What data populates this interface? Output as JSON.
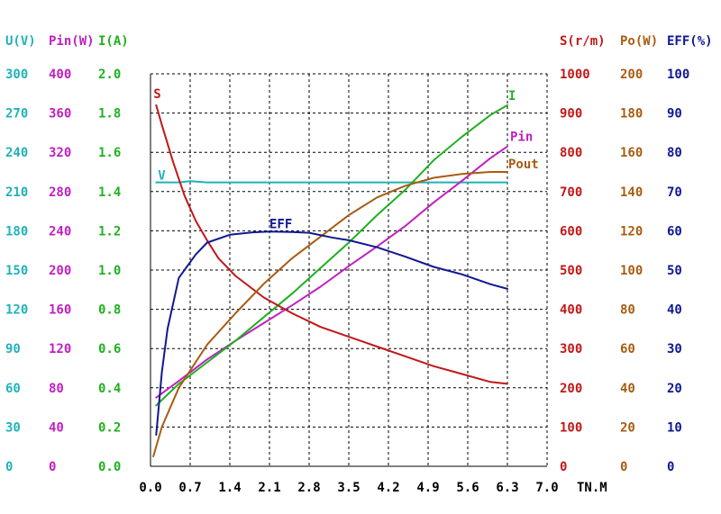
{
  "colors": {
    "U": "#20b2b8",
    "Pin": "#c020c0",
    "I": "#20b020",
    "S": "#c01818",
    "Po": "#a85c10",
    "EFF": "#101890",
    "grid": "#000000",
    "xaxis": "#000000"
  },
  "chart_data": {
    "type": "line",
    "x_unit": "TN.M",
    "x_ticks": [
      "0.0",
      "0.7",
      "1.4",
      "2.1",
      "2.8",
      "3.5",
      "4.2",
      "4.9",
      "5.6",
      "6.3",
      "7.0"
    ],
    "xlim": [
      0,
      7.0
    ],
    "grid": true,
    "axes": [
      {
        "key": "U",
        "header": "U(V)",
        "side": "left",
        "ticks": [
          "0",
          "30",
          "60",
          "90",
          "120",
          "150",
          "180",
          "210",
          "240",
          "270",
          "300"
        ],
        "ylim": [
          0,
          300
        ]
      },
      {
        "key": "Pin",
        "header": "Pin(W)",
        "side": "left",
        "ticks": [
          "0",
          "40",
          "80",
          "120",
          "160",
          "200",
          "240",
          "280",
          "320",
          "360",
          "400"
        ],
        "ylim": [
          0,
          400
        ]
      },
      {
        "key": "I",
        "header": "I(A)",
        "side": "left",
        "ticks": [
          "0.0",
          "0.2",
          "0.4",
          "0.6",
          "0.8",
          "1.0",
          "1.2",
          "1.4",
          "1.6",
          "1.8",
          "2.0"
        ],
        "ylim": [
          0,
          2.0
        ]
      },
      {
        "key": "S",
        "header": "S(r/m)",
        "side": "right",
        "ticks": [
          "0",
          "100",
          "200",
          "300",
          "400",
          "500",
          "600",
          "700",
          "800",
          "900",
          "1000"
        ],
        "ylim": [
          0,
          1000
        ]
      },
      {
        "key": "Po",
        "header": "Po(W)",
        "side": "right",
        "ticks": [
          "0",
          "20",
          "40",
          "60",
          "80",
          "100",
          "120",
          "140",
          "160",
          "180",
          "200"
        ],
        "ylim": [
          0,
          200
        ]
      },
      {
        "key": "EFF",
        "header": "EFF(%)",
        "side": "right",
        "ticks": [
          "0",
          "10",
          "20",
          "30",
          "40",
          "50",
          "60",
          "70",
          "80",
          "90",
          "100"
        ],
        "ylim": [
          0,
          100
        ]
      }
    ],
    "series": [
      {
        "name": "V",
        "axis": "U",
        "x": [
          0.1,
          0.5,
          0.7,
          1.0,
          2.0,
          3.0,
          4.0,
          5.0,
          6.0,
          6.3
        ],
        "y": [
          217,
          217,
          218,
          217,
          217,
          217,
          217,
          217,
          217,
          217
        ]
      },
      {
        "name": "Pin",
        "axis": "Pin",
        "x": [
          0.1,
          0.5,
          1.0,
          1.5,
          2.0,
          2.5,
          3.0,
          3.5,
          4.0,
          4.5,
          5.0,
          5.5,
          6.0,
          6.3
        ],
        "y": [
          70,
          87,
          109,
          128,
          146,
          164,
          183,
          204,
          224,
          245,
          269,
          291,
          314,
          326
        ]
      },
      {
        "name": "I",
        "axis": "I",
        "x": [
          0.1,
          0.5,
          1.0,
          1.5,
          2.0,
          2.5,
          3.0,
          3.5,
          4.0,
          4.5,
          5.0,
          5.5,
          6.0,
          6.3
        ],
        "y": [
          0.31,
          0.42,
          0.53,
          0.64,
          0.76,
          0.88,
          1.01,
          1.14,
          1.28,
          1.41,
          1.56,
          1.68,
          1.79,
          1.84
        ]
      },
      {
        "name": "S",
        "axis": "S",
        "x": [
          0.1,
          0.2,
          0.4,
          0.6,
          0.8,
          1.0,
          1.2,
          1.5,
          2.0,
          2.5,
          3.0,
          3.5,
          4.0,
          4.5,
          5.0,
          5.5,
          6.0,
          6.3
        ],
        "y": [
          920,
          870,
          775,
          690,
          625,
          575,
          530,
          485,
          430,
          390,
          355,
          330,
          305,
          280,
          255,
          235,
          215,
          210
        ]
      },
      {
        "name": "Pout",
        "axis": "Po",
        "x": [
          0.05,
          0.2,
          0.5,
          1.0,
          1.5,
          2.0,
          2.5,
          3.0,
          3.5,
          4.0,
          4.5,
          5.0,
          5.5,
          6.0,
          6.3
        ],
        "y": [
          5,
          20,
          40,
          62,
          78,
          93,
          106,
          117,
          128,
          137,
          143,
          147,
          149,
          150,
          150
        ]
      },
      {
        "name": "EFF",
        "axis": "EFF",
        "x": [
          0.1,
          0.2,
          0.3,
          0.5,
          0.8,
          1.0,
          1.4,
          1.8,
          2.1,
          2.5,
          2.8,
          3.2,
          3.5,
          4.0,
          4.5,
          5.0,
          5.5,
          6.0,
          6.3
        ],
        "y": [
          8,
          24,
          35,
          48,
          54,
          57,
          59,
          59.6,
          59.8,
          59.7,
          59.5,
          58.3,
          57.6,
          55.8,
          53.4,
          50.8,
          48.9,
          46.4,
          45.2
        ]
      }
    ]
  }
}
